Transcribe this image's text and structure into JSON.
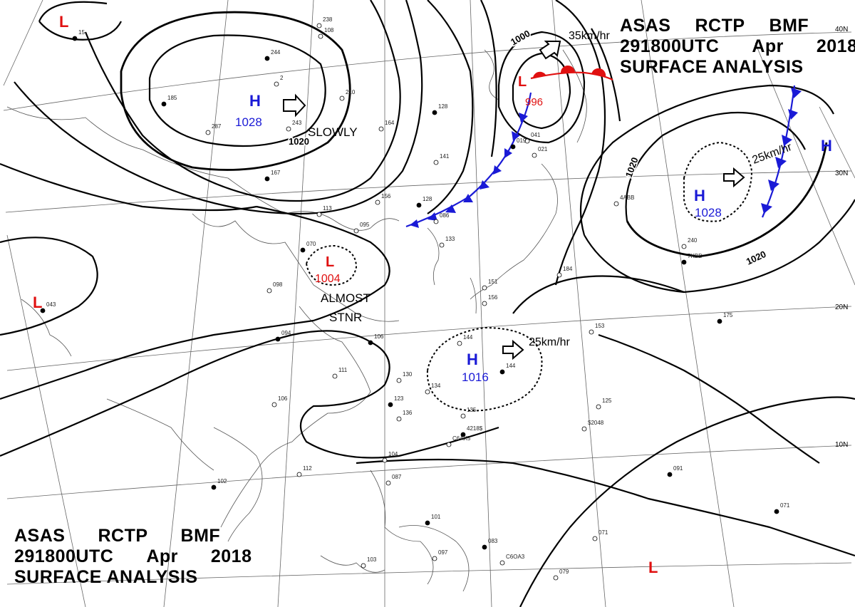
{
  "header": {
    "agency": "ASAS",
    "station": "RCTP",
    "office": "BMF",
    "time": "291800UTC",
    "month": "Apr",
    "year": "2018",
    "product": "SURFACE ANALYSIS"
  },
  "latitudes": [
    "40N",
    "30N",
    "20N",
    "10N"
  ],
  "isobars": {
    "labels": [
      "1020",
      "1000",
      "1020",
      "1020"
    ]
  },
  "pressure_centers": [
    {
      "type": "H",
      "value": "1028",
      "color": "#1a1ad6",
      "note": "SLOWLY"
    },
    {
      "type": "L",
      "value": "996",
      "color": "#e01010",
      "speed": "35km/hr"
    },
    {
      "type": "H",
      "value": "1028",
      "color": "#1a1ad6",
      "speed": "25km/hr"
    },
    {
      "type": "L",
      "value": "1004",
      "color": "#e01010",
      "note1": "ALMOST",
      "note2": "STNR"
    },
    {
      "type": "H",
      "value": "1016",
      "color": "#1a1ad6",
      "speed": "25km/hr"
    },
    {
      "type": "H",
      "value": "",
      "color": "#1a1ad6"
    },
    {
      "type": "L",
      "value": "",
      "color": "#e01010"
    },
    {
      "type": "L",
      "value": "",
      "color": "#e01010"
    },
    {
      "type": "L",
      "value": "",
      "color": "#e01010"
    }
  ],
  "station_obs": [
    "15",
    "108",
    "238",
    "244",
    "2",
    "210",
    "185",
    "287",
    "243",
    "128",
    "164",
    "141",
    "167",
    "156",
    "113",
    "128",
    "086",
    "095",
    "070",
    "133",
    "098",
    "094",
    "111",
    "106",
    "106",
    "130",
    "134",
    "123",
    "136",
    "144",
    "144",
    "135",
    "112",
    "102",
    "104",
    "087",
    "101",
    "103",
    "097",
    "083",
    "071",
    "079",
    "091",
    "125",
    "153",
    "175",
    "184",
    "240",
    "043",
    "021",
    "041",
    "019",
    "151",
    "156",
    "071",
    "C6AX5",
    "C6OA3",
    "7KBD",
    "4ABB",
    "$2048",
    "4218$"
  ]
}
